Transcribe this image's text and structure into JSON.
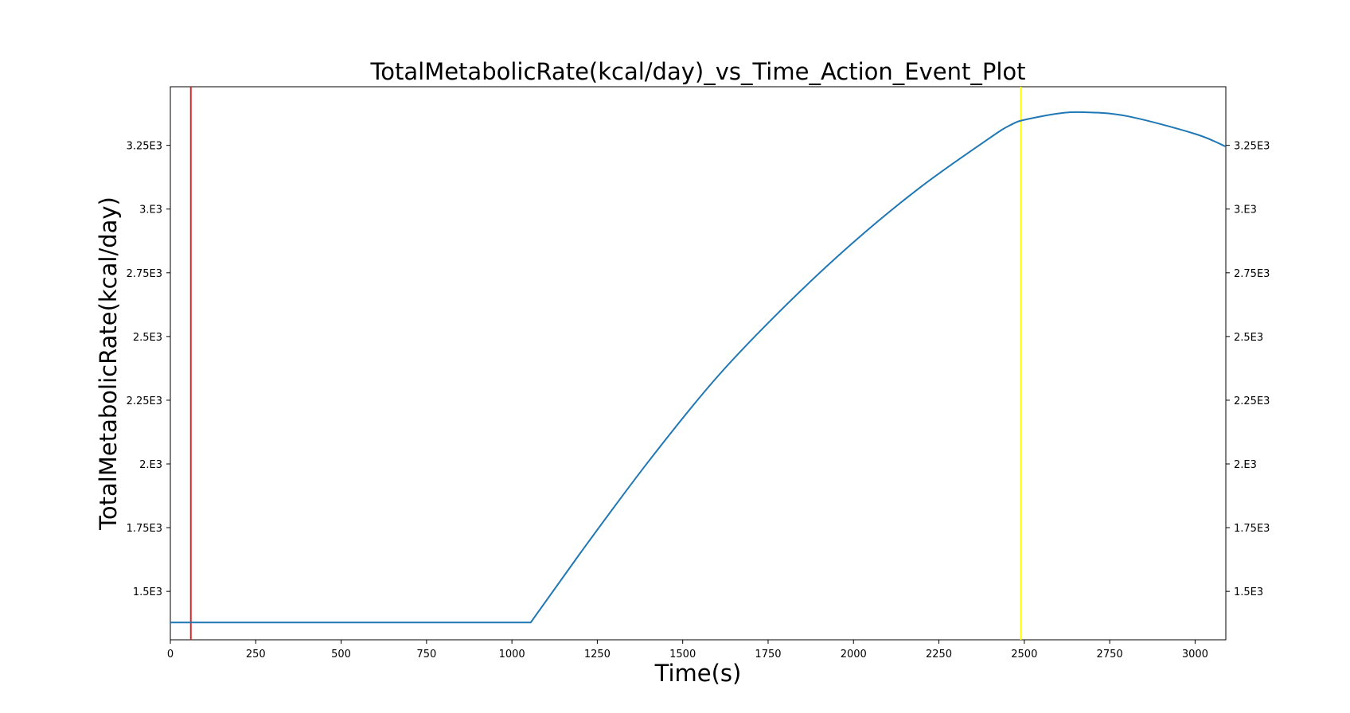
{
  "chart_data": {
    "type": "line",
    "title": "TotalMetabolicRate(kcal/day)_vs_Time_Action_Event_Plot",
    "xlabel": "Time(s)",
    "ylabel": "TotalMetabolicRate(kcal/day)",
    "xlim": [
      0,
      3090
    ],
    "ylim": [
      1310,
      3480
    ],
    "x_ticks": [
      {
        "value": 0,
        "label": "0"
      },
      {
        "value": 250,
        "label": "250"
      },
      {
        "value": 500,
        "label": "500"
      },
      {
        "value": 750,
        "label": "750"
      },
      {
        "value": 1000,
        "label": "1000"
      },
      {
        "value": 1250,
        "label": "1250"
      },
      {
        "value": 1500,
        "label": "1500"
      },
      {
        "value": 1750,
        "label": "1750"
      },
      {
        "value": 2000,
        "label": "2000"
      },
      {
        "value": 2250,
        "label": "2250"
      },
      {
        "value": 2500,
        "label": "2500"
      },
      {
        "value": 2750,
        "label": "2750"
      },
      {
        "value": 3000,
        "label": "3000"
      }
    ],
    "y_ticks": [
      {
        "value": 1500,
        "label": "1.5E3"
      },
      {
        "value": 1750,
        "label": "1.75E3"
      },
      {
        "value": 2000,
        "label": "2.E3"
      },
      {
        "value": 2250,
        "label": "2.25E3"
      },
      {
        "value": 2500,
        "label": "2.5E3"
      },
      {
        "value": 2750,
        "label": "2.75E3"
      },
      {
        "value": 3000,
        "label": "3.E3"
      },
      {
        "value": 3250,
        "label": "3.25E3"
      }
    ],
    "grid": false,
    "series": [
      {
        "color": "#1f77b4",
        "x": [
          0,
          500,
          1000,
          1055,
          1200,
          1400,
          1600,
          1800,
          2000,
          2200,
          2400,
          2460,
          2500,
          2600,
          2675,
          2800,
          3000,
          3090
        ],
        "y": [
          1378,
          1378,
          1378,
          1378,
          1650,
          2010,
          2340,
          2620,
          2870,
          3090,
          3280,
          3330,
          3350,
          3375,
          3380,
          3365,
          3295,
          3245
        ]
      }
    ],
    "event_lines": [
      {
        "x": 60,
        "color": "#d62728"
      },
      {
        "x": 2490,
        "color": "#ffff00"
      }
    ]
  }
}
